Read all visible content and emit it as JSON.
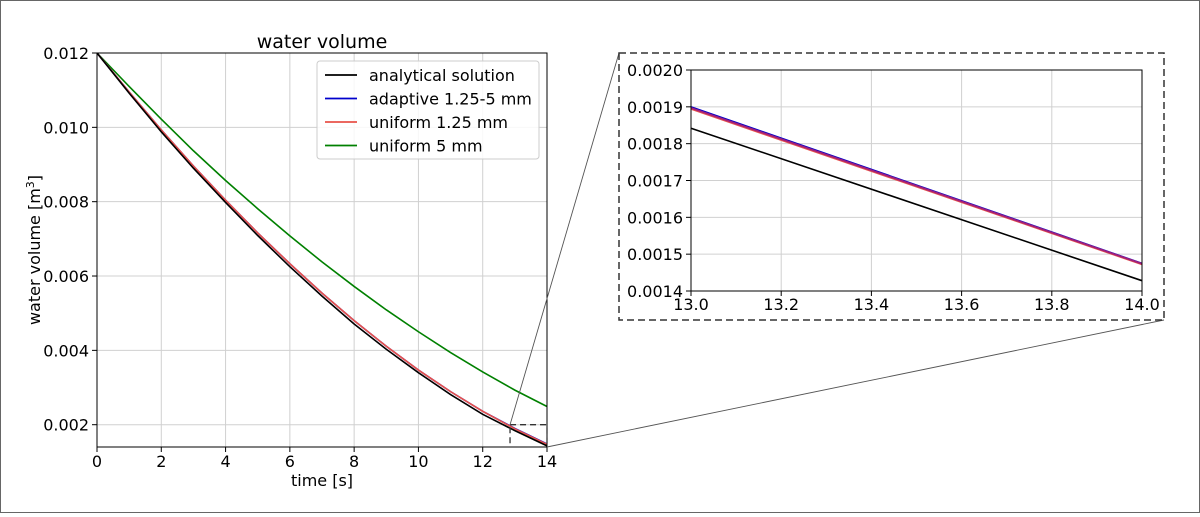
{
  "chart_data": [
    {
      "type": "line",
      "panel": "main",
      "title": "water volume",
      "xlabel": "time [s]",
      "ylabel": "water volume [m",
      "ylabel_sup": "3",
      "ylabel_close": "]",
      "xlim": [
        0,
        14
      ],
      "ylim": [
        0.0014,
        0.012
      ],
      "xticks": [
        0,
        2,
        4,
        6,
        8,
        10,
        12,
        14
      ],
      "xtick_labels": [
        "0",
        "2",
        "4",
        "6",
        "8",
        "10",
        "12",
        "14"
      ],
      "yticks": [
        0.002,
        0.004,
        0.006,
        0.008,
        0.01,
        0.012
      ],
      "ytick_labels": [
        "0.002",
        "0.004",
        "0.006",
        "0.008",
        "0.010",
        "0.012"
      ],
      "grid": true,
      "legend_position": "top-right",
      "x": [
        0,
        1,
        2,
        3,
        4,
        5,
        6,
        7,
        8,
        9,
        10,
        11,
        12,
        13,
        14
      ],
      "series": [
        {
          "name": "analytical solution",
          "color": "#000000",
          "values": [
            0.012,
            0.01092,
            0.00988,
            0.0089,
            0.00798,
            0.00709,
            0.00625,
            0.00546,
            0.00471,
            0.00403,
            0.0034,
            0.00281,
            0.00228,
            0.00184,
            0.00143
          ]
        },
        {
          "name": "adaptive 1.25-5 mm",
          "color": "#0000cc",
          "values": [
            0.012,
            0.01095,
            0.00993,
            0.00896,
            0.00804,
            0.00716,
            0.00633,
            0.00554,
            0.0048,
            0.00411,
            0.00347,
            0.00289,
            0.00236,
            0.0019,
            0.00148
          ]
        },
        {
          "name": "uniform 1.25 mm",
          "color": "#e8524a",
          "values": [
            0.012,
            0.01095,
            0.00993,
            0.00896,
            0.00804,
            0.00716,
            0.00633,
            0.00554,
            0.0048,
            0.00411,
            0.00347,
            0.00289,
            0.00236,
            0.00189,
            0.00147
          ]
        },
        {
          "name": "uniform 5 mm",
          "color": "#008000",
          "values": [
            0.012,
            0.0111,
            0.01022,
            0.00937,
            0.00857,
            0.00781,
            0.00708,
            0.00638,
            0.00572,
            0.00509,
            0.0045,
            0.00394,
            0.00342,
            0.00293,
            0.00249
          ]
        }
      ],
      "zoom_box": {
        "x": [
          12.85,
          14
        ],
        "y": [
          0.0014,
          0.002
        ]
      }
    },
    {
      "type": "line",
      "panel": "inset",
      "xlim": [
        13.0,
        14.0
      ],
      "ylim": [
        0.0014,
        0.002
      ],
      "xticks": [
        13.0,
        13.2,
        13.4,
        13.6,
        13.8,
        14.0
      ],
      "xtick_labels": [
        "13.0",
        "13.2",
        "13.4",
        "13.6",
        "13.8",
        "14.0"
      ],
      "yticks": [
        0.0014,
        0.0015,
        0.0016,
        0.0017,
        0.0018,
        0.0019,
        0.002
      ],
      "ytick_labels": [
        "0.0014",
        "0.0015",
        "0.0016",
        "0.0017",
        "0.0018",
        "0.0019",
        "0.0020"
      ],
      "grid": true,
      "x": [
        13.0,
        14.0
      ],
      "series": [
        {
          "ref": "analytical solution",
          "color": "#000000",
          "values": [
            0.001842,
            0.001428
          ]
        },
        {
          "ref": "adaptive 1.25-5 mm",
          "color": "#0000cc",
          "values": [
            0.0019,
            0.001475
          ]
        },
        {
          "ref": "uniform 1.25 mm",
          "color": "#e8524a",
          "values": [
            0.001894,
            0.001472
          ]
        },
        {
          "ref": "overlap",
          "color": "#a0207a",
          "values": [
            0.001897,
            0.001474
          ]
        }
      ]
    }
  ]
}
